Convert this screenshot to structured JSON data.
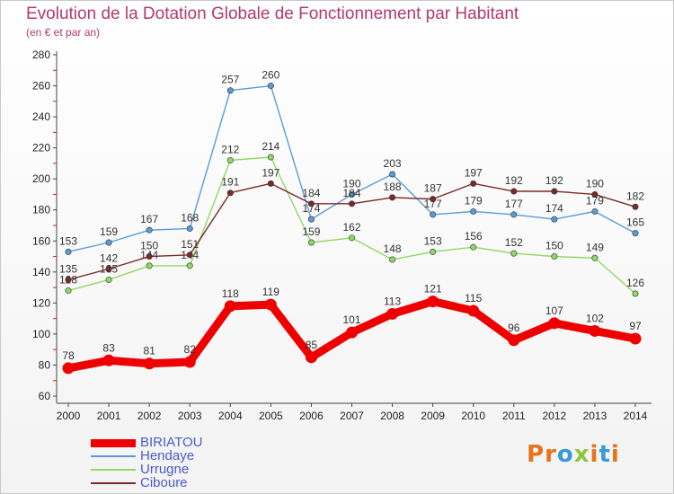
{
  "title": "Evolution de la Dotation Globale de Fonctionnement par Habitant",
  "subtitle": "(en € et par an)",
  "chart_data": {
    "type": "line",
    "x": [
      2000,
      2001,
      2002,
      2003,
      2004,
      2005,
      2006,
      2007,
      2008,
      2009,
      2010,
      2011,
      2012,
      2013,
      2014
    ],
    "ylim": [
      60,
      280
    ],
    "yticks": [
      60,
      80,
      100,
      120,
      140,
      160,
      180,
      200,
      220,
      240,
      260,
      280
    ],
    "grid": false,
    "legend_position": "bottom-left",
    "series": [
      {
        "name": "BIRIATOU",
        "color": "#ee0000",
        "values": [
          78,
          83,
          81,
          82,
          118,
          119,
          85,
          101,
          113,
          121,
          115,
          96,
          107,
          102,
          97
        ]
      },
      {
        "name": "Hendaye",
        "color": "#5b9bd5",
        "values": [
          153,
          159,
          167,
          168,
          257,
          260,
          174,
          190,
          203,
          177,
          179,
          177,
          174,
          179,
          165
        ]
      },
      {
        "name": "Urrugne",
        "color": "#8ed863",
        "values": [
          128,
          135,
          144,
          144,
          212,
          214,
          159,
          162,
          148,
          153,
          156,
          152,
          150,
          149,
          126
        ]
      },
      {
        "name": "Ciboure",
        "color": "#7a2a2a",
        "values": [
          135,
          142,
          150,
          151,
          191,
          197,
          184,
          184,
          188,
          187,
          197,
          192,
          192,
          190,
          182
        ]
      }
    ]
  },
  "logo": {
    "letters": [
      "P",
      "r",
      "o",
      "x",
      "i",
      "t",
      "i"
    ],
    "colors": [
      "#e8731a",
      "#e8731a",
      "#3a9ad9",
      "#8cc63f",
      "#e8731a",
      "#3a9ad9",
      "#e8731a"
    ]
  }
}
